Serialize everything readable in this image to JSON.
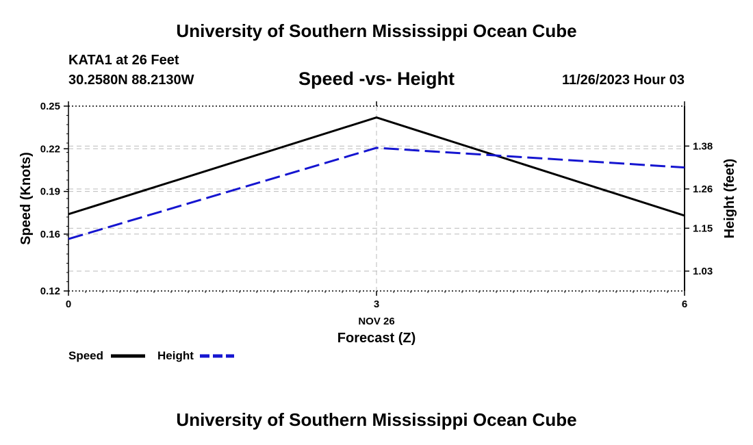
{
  "header": {
    "title": "University of Southern Mississippi Ocean Cube",
    "station": "KATA1 at 26 Feet",
    "coordinates": "30.2580N  88.2130W",
    "datetime": "11/26/2023 Hour 03"
  },
  "footer": {
    "title": "University of Southern Mississippi Ocean Cube"
  },
  "chart_data": {
    "type": "line",
    "title": "Speed -vs- Height",
    "xlabel": "Forecast (Z)",
    "x": [
      0,
      3,
      6
    ],
    "x_ticks": [
      "0",
      "3",
      "6"
    ],
    "x_date_label": "NOV 26",
    "xlim": [
      0,
      6
    ],
    "y_left": {
      "label": "Speed (Knots)",
      "ylim": [
        0.12,
        0.25
      ],
      "ticks": [
        "0.25",
        "0.22",
        "0.19",
        "0.16",
        "0.12"
      ],
      "tick_values": [
        0.25,
        0.22,
        0.19,
        0.16,
        0.12
      ]
    },
    "y_right": {
      "label": "Height (feet)",
      "ylim": [
        0.9744,
        1.4918
      ],
      "ticks": [
        "1.38",
        "1.26",
        "1.15",
        "1.03"
      ],
      "tick_values": [
        1.38,
        1.26,
        1.15,
        1.03
      ]
    },
    "series": [
      {
        "name": "Speed",
        "axis": "left",
        "values": [
          0.174,
          0.242,
          0.173
        ],
        "color": "#000000",
        "style": "solid"
      },
      {
        "name": "Height",
        "axis": "right",
        "values": [
          1.12,
          1.375,
          1.32
        ],
        "color": "#1515d0",
        "style": "dashed"
      }
    ],
    "legend": [
      "Speed",
      "Height"
    ],
    "legend_position": "bottom-left",
    "grid": true
  }
}
